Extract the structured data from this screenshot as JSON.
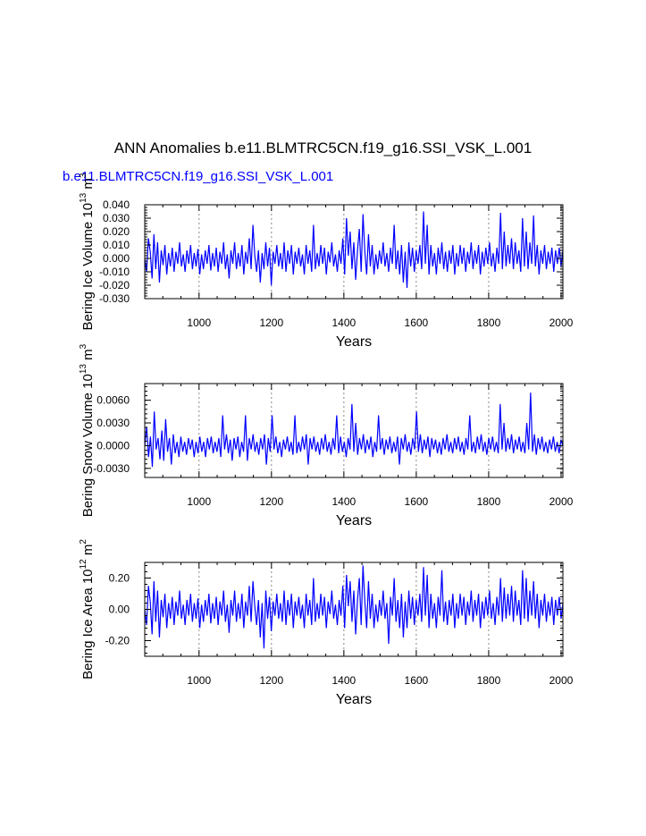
{
  "title": "ANN Anomalies b.e11.BLMTRC5CN.f19_g16.SSI_VSK_L.001",
  "run_label": "b.e11.BLMTRC5CN.f19_g16.SSI_VSK_L.001",
  "colors": {
    "series": "#0000ff",
    "grid": "#888888",
    "axis": "#000000",
    "run_label": "#0000ff"
  },
  "chart_data": [
    {
      "type": "line",
      "title": "",
      "xlabel": "Years",
      "ylabel": "Bering Ice Volume",
      "yunit_base": "10",
      "yunit_exp": "13",
      "yunit_sym": "m",
      "yunit_symexp": "3",
      "xlim": [
        850,
        2005
      ],
      "ylim": [
        -0.03,
        0.04
      ],
      "xticks": [
        1000,
        1200,
        1400,
        1600,
        1800,
        2000
      ],
      "yticks": [
        "0.040",
        "0.030",
        "0.020",
        "0.010",
        "0.000",
        "-0.010",
        "-0.020",
        "-0.030"
      ],
      "yminor_step": 0.002,
      "grid_x": [
        1000,
        1200,
        1400,
        1600,
        1800,
        2000
      ],
      "series": [
        {
          "values": [
            0.0,
            -0.01,
            0.015,
            0.005,
            -0.015,
            0.018,
            -0.008,
            0.012,
            -0.018,
            0.006,
            -0.005,
            0.01,
            -0.012,
            0.004,
            -0.006,
            0.008,
            -0.01,
            0.005,
            -0.004,
            0.012,
            -0.006,
            0.003,
            -0.01,
            0.006,
            -0.004,
            0.01,
            -0.008,
            0.004,
            -0.006,
            0.007,
            -0.012,
            0.003,
            -0.008,
            0.006,
            -0.004,
            0.01,
            -0.009,
            0.004,
            -0.006,
            0.008,
            -0.01,
            0.005,
            -0.004,
            0.012,
            -0.008,
            0.003,
            -0.015,
            0.006,
            -0.004,
            0.012,
            -0.008,
            0.004,
            -0.006,
            0.01,
            -0.012,
            0.005,
            -0.004,
            0.015,
            -0.008,
            0.025,
            0.002,
            -0.01,
            0.006,
            -0.018,
            0.004,
            -0.008,
            0.012,
            -0.006,
            0.008,
            -0.02,
            0.005,
            -0.004,
            0.01,
            -0.006,
            0.004,
            -0.008,
            0.012,
            -0.01,
            0.006,
            -0.004,
            0.01,
            -0.012,
            0.005,
            -0.004,
            0.008,
            -0.006,
            0.003,
            -0.012,
            0.01,
            -0.004,
            0.006,
            -0.01,
            0.025,
            -0.008,
            0.004,
            -0.006,
            0.01,
            -0.004,
            0.008,
            -0.012,
            0.005,
            -0.003,
            0.012,
            -0.006,
            0.003,
            -0.01,
            0.006,
            -0.004,
            0.015,
            -0.012,
            0.03,
            0.002,
            0.02,
            -0.008,
            0.012,
            -0.016,
            0.006,
            0.022,
            -0.01,
            0.033,
            0.005,
            -0.012,
            0.018,
            -0.006,
            0.01,
            -0.012,
            0.003,
            -0.008,
            0.006,
            -0.004,
            0.012,
            -0.006,
            0.004,
            -0.01,
            0.008,
            -0.004,
            0.025,
            -0.008,
            0.006,
            -0.012,
            0.01,
            -0.018,
            0.005,
            -0.022,
            0.012,
            -0.006,
            0.008,
            -0.01,
            0.006,
            -0.004,
            0.01,
            -0.008,
            0.035,
            -0.004,
            0.025,
            -0.012,
            0.01,
            -0.006,
            0.004,
            -0.012,
            0.008,
            -0.004,
            0.012,
            -0.008,
            0.005,
            -0.01,
            0.006,
            -0.004,
            0.01,
            -0.012,
            0.004,
            -0.006,
            0.01,
            -0.004,
            0.008,
            -0.01,
            0.005,
            -0.004,
            0.012,
            -0.008,
            0.006,
            -0.004,
            0.01,
            -0.012,
            0.005,
            -0.006,
            0.008,
            -0.004,
            0.012,
            -0.006,
            0.004,
            -0.01,
            0.008,
            -0.004,
            0.034,
            -0.008,
            0.02,
            -0.006,
            0.01,
            -0.004,
            0.015,
            -0.008,
            0.012,
            -0.004,
            0.006,
            -0.01,
            0.03,
            -0.006,
            0.02,
            -0.008,
            0.012,
            -0.004,
            0.032,
            -0.006,
            0.01,
            -0.012,
            0.006,
            -0.004,
            0.01,
            -0.008,
            0.005,
            -0.004,
            0.008,
            -0.01,
            0.006,
            -0.004,
            0.008,
            -0.006,
            0.006
          ]
        }
      ]
    },
    {
      "type": "line",
      "title": "",
      "xlabel": "Years",
      "ylabel": "Bering Snow Volume",
      "yunit_base": "10",
      "yunit_exp": "13",
      "yunit_sym": "m",
      "yunit_symexp": "3",
      "xlim": [
        850,
        2005
      ],
      "ylim": [
        -0.0042,
        0.0082
      ],
      "xticks": [
        1000,
        1200,
        1400,
        1600,
        1800,
        2000
      ],
      "yticks": [
        "0.0060",
        "0.0030",
        "0.0000",
        "-0.0030"
      ],
      "yminor_step": 0.0006,
      "grid_x": [
        1000,
        1200,
        1400,
        1600,
        1800,
        2000
      ],
      "series": [
        {
          "values": [
            0.0,
            0.0025,
            -0.0015,
            0.0012,
            -0.0028,
            0.0045,
            -0.0005,
            0.001,
            -0.0018,
            0.002,
            -0.002,
            0.0035,
            -0.0008,
            0.001,
            -0.0025,
            0.0015,
            -0.001,
            0.0005,
            -0.0015,
            0.0012,
            -0.0008,
            0.0005,
            -0.0012,
            0.001,
            -0.0005,
            0.0008,
            -0.0015,
            0.0005,
            -0.001,
            0.0012,
            -0.0008,
            0.0005,
            -0.0015,
            0.001,
            -0.0005,
            0.0012,
            -0.001,
            0.0005,
            -0.0008,
            0.001,
            -0.0015,
            0.004,
            -0.0005,
            0.0015,
            -0.001,
            0.0008,
            -0.002,
            0.001,
            -0.0005,
            0.0012,
            -0.0015,
            0.0005,
            -0.0008,
            0.004,
            -0.002,
            0.001,
            -0.0005,
            0.0015,
            -0.0008,
            0.0005,
            -0.0012,
            0.001,
            -0.0005,
            0.0015,
            -0.0025,
            0.001,
            -0.0008,
            0.004,
            -0.0005,
            0.0012,
            -0.001,
            0.0005,
            -0.0015,
            0.0008,
            -0.0005,
            0.0012,
            -0.0008,
            0.0005,
            -0.0012,
            0.004,
            -0.001,
            0.0005,
            -0.0008,
            0.0012,
            -0.0005,
            0.0015,
            -0.0025,
            0.001,
            -0.0005,
            0.0012,
            -0.0008,
            0.0005,
            -0.0012,
            0.001,
            -0.0005,
            0.0015,
            -0.0008,
            0.0005,
            -0.0012,
            0.001,
            -0.0005,
            0.004,
            -0.001,
            0.0012,
            -0.0008,
            0.0005,
            -0.0015,
            0.001,
            -0.0005,
            0.0055,
            -0.0008,
            0.003,
            -0.0012,
            0.001,
            -0.0005,
            0.0015,
            -0.001,
            0.0008,
            -0.0005,
            0.0012,
            -0.0015,
            0.0005,
            -0.0008,
            0.004,
            -0.0005,
            0.001,
            -0.0012,
            0.0008,
            -0.0005,
            0.0012,
            -0.001,
            0.0005,
            -0.0008,
            0.0012,
            -0.0025,
            0.001,
            -0.0005,
            0.0015,
            -0.0008,
            0.0005,
            -0.0012,
            0.001,
            -0.0005,
            0.0045,
            -0.0008,
            0.0015,
            -0.001,
            0.0008,
            -0.0005,
            0.0012,
            -0.0015,
            0.001,
            -0.0005,
            0.0008,
            -0.001,
            0.0005,
            -0.0012,
            0.001,
            -0.0005,
            0.0015,
            -0.0008,
            0.0005,
            -0.001,
            0.001,
            -0.0005,
            0.0012,
            -0.0008,
            0.0005,
            -0.0012,
            0.001,
            -0.0005,
            0.004,
            -0.0008,
            0.0005,
            -0.001,
            0.0012,
            -0.0005,
            0.0015,
            -0.0008,
            0.0005,
            -0.0012,
            0.001,
            -0.0005,
            0.0012,
            -0.0008,
            0.0005,
            -0.001,
            0.0055,
            -0.0005,
            0.003,
            -0.0008,
            0.001,
            -0.0005,
            0.0015,
            -0.001,
            0.0008,
            -0.0005,
            0.0012,
            -0.0008,
            0.0005,
            -0.001,
            0.003,
            -0.0005,
            0.007,
            -0.0008,
            0.0015,
            -0.0012,
            0.001,
            -0.0005,
            0.0012,
            -0.0008,
            0.0005,
            -0.001,
            0.0008,
            -0.0005,
            0.0012,
            -0.0008,
            0.0005,
            -0.001,
            0.0008,
            0.0
          ]
        }
      ]
    },
    {
      "type": "line",
      "title": "",
      "xlabel": "Years",
      "ylabel": "Bering Ice Area",
      "yunit_base": "10",
      "yunit_exp": "12",
      "yunit_sym": "m",
      "yunit_symexp": "2",
      "xlim": [
        850,
        2005
      ],
      "ylim": [
        -0.3,
        0.3
      ],
      "xticks": [
        1000,
        1200,
        1400,
        1600,
        1800,
        2000
      ],
      "yticks": [
        "0.20",
        "0.00",
        "-0.20"
      ],
      "yminor_step": 0.04,
      "grid_x": [
        1000,
        1200,
        1400,
        1600,
        1800,
        2000
      ],
      "series": [
        {
          "values": [
            0.0,
            -0.1,
            0.15,
            0.05,
            -0.16,
            0.18,
            -0.08,
            0.12,
            -0.18,
            0.06,
            -0.05,
            0.1,
            -0.12,
            0.04,
            -0.06,
            0.08,
            -0.1,
            0.05,
            -0.04,
            0.12,
            -0.06,
            0.03,
            -0.1,
            0.06,
            -0.04,
            0.1,
            -0.08,
            0.04,
            -0.06,
            0.07,
            -0.12,
            0.03,
            -0.08,
            0.06,
            -0.04,
            0.1,
            -0.09,
            0.04,
            -0.06,
            0.08,
            -0.1,
            0.05,
            -0.04,
            0.12,
            -0.08,
            0.03,
            -0.15,
            0.06,
            -0.04,
            0.12,
            -0.08,
            0.04,
            -0.06,
            0.1,
            -0.12,
            0.05,
            -0.04,
            0.15,
            -0.08,
            0.18,
            0.02,
            -0.1,
            0.06,
            -0.18,
            0.04,
            -0.25,
            0.12,
            -0.06,
            0.08,
            -0.14,
            0.05,
            -0.04,
            0.1,
            -0.06,
            0.04,
            -0.08,
            0.12,
            -0.1,
            0.06,
            -0.04,
            0.1,
            -0.12,
            0.05,
            -0.04,
            0.08,
            -0.06,
            0.03,
            -0.12,
            0.1,
            -0.04,
            0.06,
            -0.1,
            0.2,
            -0.08,
            0.04,
            -0.06,
            0.1,
            -0.04,
            0.08,
            -0.12,
            0.05,
            -0.03,
            0.12,
            -0.06,
            0.03,
            -0.1,
            0.06,
            -0.04,
            0.15,
            -0.12,
            0.22,
            0.02,
            0.18,
            -0.08,
            0.12,
            -0.16,
            0.06,
            0.2,
            -0.1,
            0.28,
            0.05,
            -0.12,
            0.18,
            -0.06,
            0.1,
            -0.12,
            0.03,
            -0.08,
            0.06,
            -0.04,
            0.12,
            -0.06,
            0.04,
            -0.22,
            0.08,
            -0.04,
            0.2,
            -0.08,
            0.06,
            -0.12,
            0.1,
            -0.18,
            0.05,
            -0.12,
            0.12,
            -0.06,
            0.08,
            -0.1,
            0.06,
            -0.04,
            0.1,
            -0.08,
            0.27,
            -0.04,
            0.22,
            -0.12,
            0.1,
            -0.06,
            0.04,
            -0.12,
            0.08,
            -0.04,
            0.25,
            -0.08,
            0.05,
            -0.1,
            0.06,
            -0.04,
            0.1,
            -0.12,
            0.04,
            -0.06,
            0.1,
            -0.04,
            0.08,
            -0.1,
            0.05,
            -0.04,
            0.12,
            -0.08,
            0.06,
            -0.04,
            0.1,
            -0.12,
            0.05,
            -0.06,
            0.08,
            -0.04,
            0.12,
            -0.06,
            0.04,
            -0.1,
            0.08,
            -0.04,
            0.2,
            -0.08,
            0.14,
            -0.06,
            0.1,
            -0.04,
            0.15,
            -0.08,
            0.12,
            -0.04,
            0.06,
            -0.1,
            0.25,
            -0.06,
            0.2,
            -0.08,
            0.12,
            -0.04,
            0.18,
            -0.06,
            0.1,
            -0.12,
            0.06,
            -0.04,
            0.1,
            -0.08,
            0.05,
            -0.04,
            0.08,
            -0.1,
            0.06,
            -0.04,
            0.08,
            -0.06,
            0.04
          ]
        }
      ]
    }
  ]
}
